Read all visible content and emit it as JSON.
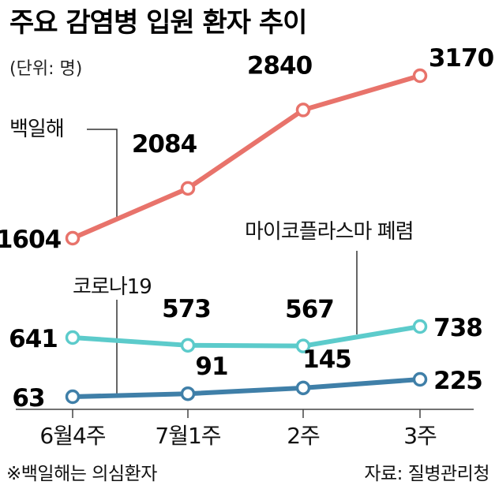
{
  "chart_data": {
    "type": "line",
    "title": "주요 감염병 입원 환자 추이",
    "unit": "(단위: 명)",
    "categories": [
      "6월4주",
      "7월1주",
      "2주",
      "3주"
    ],
    "series": [
      {
        "name": "백일해",
        "values": [
          1604,
          2084,
          2840,
          3170
        ],
        "color": "#e8736b"
      },
      {
        "name": "마이코플라스마 폐렴",
        "values": [
          641,
          573,
          567,
          738
        ],
        "color": "#5ccbcb"
      },
      {
        "name": "코로나19",
        "values": [
          63,
          91,
          145,
          225
        ],
        "color": "#3f7fa8"
      }
    ],
    "value_labels": [
      [
        "1604",
        "2084",
        "2840",
        "3170"
      ],
      [
        "641",
        "573",
        "567",
        "738"
      ],
      [
        "63",
        "91",
        "145",
        "225"
      ]
    ],
    "grid": false,
    "legend": "inline"
  },
  "footnote": "※백일해는 의심환자",
  "source": "자료: 질병관리청"
}
